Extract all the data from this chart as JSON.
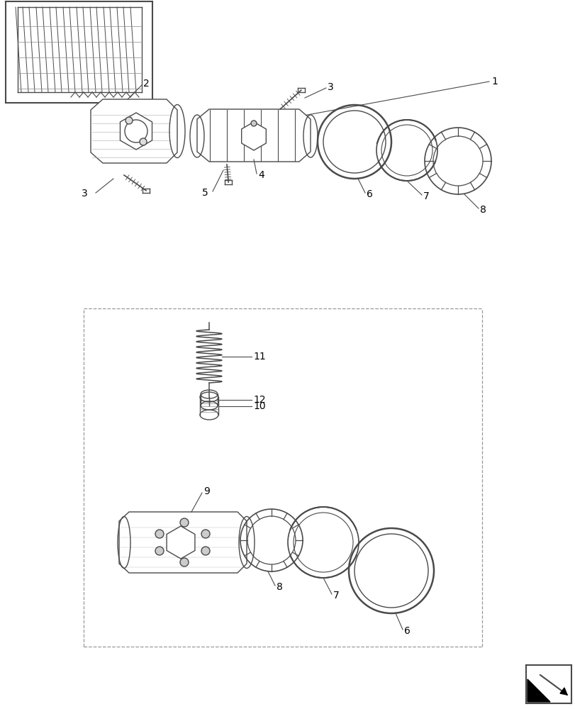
{
  "bg_color": "#ffffff",
  "line_color": "#4a4a4a",
  "fig_width": 8.12,
  "fig_height": 10.0,
  "dpi": 100
}
